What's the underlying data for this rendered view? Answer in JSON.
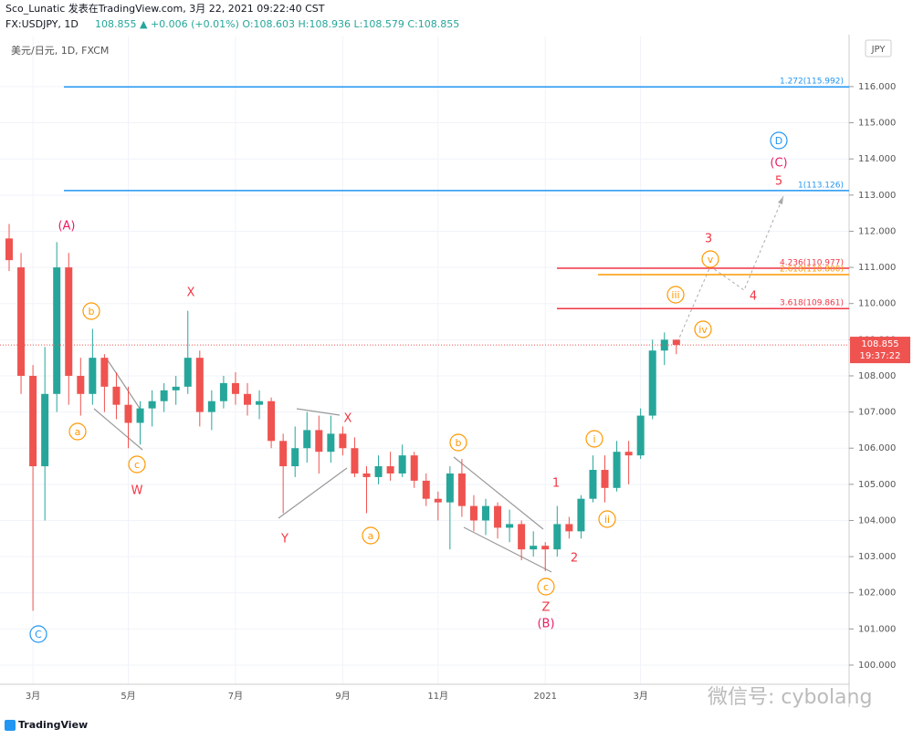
{
  "header": {
    "line1": "Sco_Lunatic 发表在TradingView.com, 3月 22, 2021 09:22:40 CST",
    "symbol": "FX:USDJPY, 1D",
    "quote": "108.855 ▲ +0.006 (+0.01%) O:108.603 H:108.936 L:108.579 C:108.855"
  },
  "chart_data": {
    "type": "candlestick",
    "title": "美元/日元, 1D, FXCM",
    "currency": "JPY",
    "categories": [
      null,
      null,
      "3月",
      null,
      null,
      null,
      null,
      null,
      null,
      null,
      "5月",
      null,
      null,
      null,
      null,
      null,
      null,
      null,
      null,
      "7月",
      null,
      null,
      null,
      null,
      null,
      null,
      null,
      null,
      "9月",
      null,
      null,
      null,
      null,
      null,
      null,
      null,
      "11月",
      null,
      null,
      null,
      null,
      null,
      null,
      null,
      null,
      "2021",
      null,
      null,
      null,
      null,
      null,
      null,
      null,
      "3月",
      null,
      null,
      null
    ],
    "open": [
      111.8,
      111.0,
      108.0,
      105.5,
      107.5,
      111.0,
      108.0,
      107.5,
      108.5,
      107.7,
      107.2,
      106.7,
      107.1,
      107.3,
      107.6,
      107.7,
      108.5,
      107.0,
      107.3,
      107.8,
      107.5,
      107.2,
      107.3,
      106.2,
      105.5,
      106.0,
      106.5,
      105.9,
      106.4,
      106.0,
      105.3,
      105.2,
      105.5,
      105.3,
      105.8,
      105.1,
      104.6,
      104.5,
      105.3,
      104.4,
      104.0,
      104.4,
      103.8,
      103.9,
      103.2,
      103.3,
      103.2,
      103.9,
      103.7,
      104.6,
      105.4,
      104.9,
      105.9,
      105.8,
      106.9,
      108.7,
      109.0
    ],
    "high": [
      112.2,
      111.4,
      108.3,
      108.8,
      111.7,
      111.4,
      108.5,
      109.3,
      108.6,
      108.1,
      107.7,
      107.3,
      107.6,
      107.8,
      108.0,
      109.8,
      108.7,
      107.6,
      108.0,
      108.1,
      107.8,
      107.6,
      107.4,
      106.4,
      106.6,
      107.0,
      106.9,
      106.9,
      106.6,
      106.3,
      105.5,
      105.8,
      105.9,
      106.1,
      105.9,
      105.3,
      104.8,
      105.5,
      105.7,
      104.7,
      104.6,
      104.5,
      104.3,
      104.0,
      103.7,
      103.4,
      104.4,
      104.1,
      104.7,
      105.8,
      105.8,
      106.2,
      106.2,
      107.1,
      109.0,
      109.2,
      109.0
    ],
    "low": [
      110.9,
      107.5,
      101.5,
      104.0,
      107.0,
      107.2,
      106.9,
      107.2,
      107.0,
      106.8,
      106.0,
      106.1,
      106.6,
      107.0,
      107.2,
      107.5,
      106.6,
      106.5,
      107.1,
      107.2,
      106.9,
      106.8,
      106.0,
      104.2,
      105.2,
      105.6,
      105.3,
      105.6,
      105.8,
      105.2,
      104.2,
      105.0,
      105.1,
      105.2,
      104.9,
      104.4,
      104.0,
      103.2,
      104.1,
      103.7,
      103.6,
      103.5,
      103.4,
      102.9,
      103.0,
      102.6,
      103.0,
      103.5,
      103.5,
      104.5,
      104.5,
      104.8,
      105.0,
      105.7,
      106.8,
      108.3,
      108.6
    ],
    "close": [
      111.2,
      108.0,
      105.5,
      107.5,
      111.0,
      108.0,
      107.5,
      108.5,
      107.7,
      107.2,
      106.7,
      107.1,
      107.3,
      107.6,
      107.7,
      108.5,
      107.0,
      107.3,
      107.8,
      107.5,
      107.2,
      107.3,
      106.2,
      105.5,
      106.0,
      106.5,
      105.9,
      106.4,
      106.0,
      105.3,
      105.2,
      105.5,
      105.3,
      105.8,
      105.1,
      104.6,
      104.5,
      105.3,
      104.4,
      104.0,
      104.4,
      103.8,
      103.9,
      103.2,
      103.3,
      103.2,
      103.9,
      103.7,
      104.6,
      105.4,
      104.9,
      105.9,
      105.8,
      106.9,
      108.7,
      109.0,
      108.855
    ],
    "up_color": "#26a69a",
    "down_color": "#ef5350",
    "ylim": [
      99.47,
      117.26
    ],
    "yticks": [
      {
        "value": 100,
        "label": "100.000"
      },
      {
        "value": 101,
        "label": "101.000"
      },
      {
        "value": 102,
        "label": "102.000"
      },
      {
        "value": 103,
        "label": "103.000"
      },
      {
        "value": 104,
        "label": "104.000"
      },
      {
        "value": 105,
        "label": "105.000"
      },
      {
        "value": 106,
        "label": "106.000"
      },
      {
        "value": 107,
        "label": "107.000"
      },
      {
        "value": 108,
        "label": "108.000"
      },
      {
        "value": 109,
        "label": "109.000"
      },
      {
        "value": 110,
        "label": "110.000"
      },
      {
        "value": 111,
        "label": "111.000"
      },
      {
        "value": 112,
        "label": "112.000"
      },
      {
        "value": 113,
        "label": "113.000"
      },
      {
        "value": 114,
        "label": "114.000"
      },
      {
        "value": 115,
        "label": "115.000"
      },
      {
        "value": 116,
        "label": "116.000"
      }
    ],
    "levels": [
      {
        "value": 115.992,
        "label": "1.272(115.992)",
        "color": "#2196f3"
      },
      {
        "value": 113.126,
        "label": "1(113.126)",
        "color": "#2196f3"
      },
      {
        "value": 110.977,
        "label": "4.236(110.977)",
        "color": "#f23645"
      },
      {
        "value": 110.8,
        "label": "2.618(110.800)",
        "color": "#ff9800"
      },
      {
        "value": 109.861,
        "label": "3.618(109.861)",
        "color": "#f23645"
      }
    ],
    "last_price": 108.855,
    "countdown": "19:37:22",
    "annotations": [
      "(A)",
      "b",
      "a",
      "c",
      "W",
      "X",
      "Y",
      "X",
      "a",
      "b",
      "c",
      "Z",
      "(B)",
      "C",
      "1",
      "2",
      "i",
      "ii",
      "iii",
      "iv",
      "v",
      "3",
      "4",
      "5",
      "(C)",
      "D"
    ]
  },
  "footer": {
    "brand": "TradingView",
    "watermark": "微信号: cybolang"
  }
}
